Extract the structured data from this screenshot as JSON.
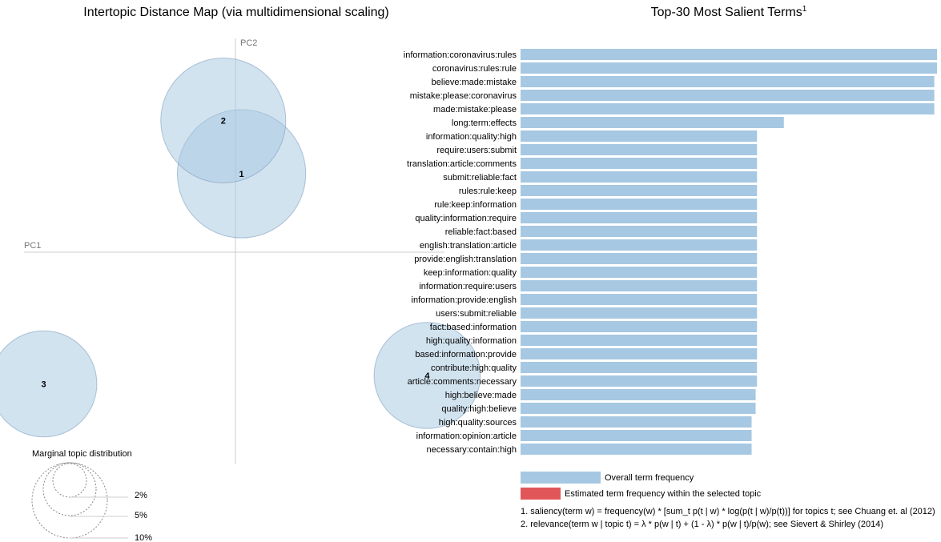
{
  "left_title": "Intertopic Distance Map (via multidimensional scaling)",
  "right_title": "Top-30 Most Salient Terms",
  "right_title_sup": "1",
  "pc1_label": "PC1",
  "pc2_label": "PC2",
  "marginal": {
    "label": "Marginal topic distribution",
    "levels": [
      "2%",
      "5%",
      "10%"
    ]
  },
  "legend": {
    "overall": "Overall term frequency",
    "overall_color": "#a6c8e2",
    "estimated": "Estimated term frequency within the selected topic",
    "estimated_color": "#e15759"
  },
  "notes": [
    "1. saliency(term w) = frequency(w) * [sum_t p(t | w) * log(p(t | w)/p(t))] for topics t; see Chuang et. al (2012)",
    "2. relevance(term w | topic t) = λ * p(w | t) + (1 - λ) * p(w | t)/p(w); see Sievert & Shirley (2014)"
  ],
  "colors": {
    "topic_fill": "#a6c8e2",
    "axis": "#cccccc"
  },
  "chart_data": [
    {
      "type": "scatter",
      "title": "Intertopic Distance Map (via multidimensional scaling)",
      "xlabel": "PC1",
      "ylabel": "PC2",
      "topics": [
        {
          "label": "1",
          "pc1": 0.02,
          "pc2": 0.28,
          "marginal_pct": 9.5
        },
        {
          "label": "2",
          "pc1": -0.04,
          "pc2": 0.47,
          "marginal_pct": 9.0
        },
        {
          "label": "3",
          "pc1": -0.63,
          "pc2": -0.47,
          "marginal_pct": 6.5
        },
        {
          "label": "4",
          "pc1": 0.63,
          "pc2": -0.44,
          "marginal_pct": 6.5
        }
      ]
    },
    {
      "type": "bar",
      "orientation": "horizontal",
      "title": "Top-30 Most Salient Terms",
      "series": [
        {
          "name": "Overall term frequency",
          "values": [
            31,
            31,
            30.8,
            30.8,
            30.8,
            19.6,
            17.6,
            17.6,
            17.6,
            17.6,
            17.6,
            17.6,
            17.6,
            17.6,
            17.6,
            17.6,
            17.6,
            17.6,
            17.6,
            17.6,
            17.6,
            17.6,
            17.6,
            17.6,
            17.6,
            17.5,
            17.5,
            17.2,
            17.2,
            17.2
          ]
        }
      ],
      "categories": [
        "information:coronavirus:rules",
        "coronavirus:rules:rule",
        "believe:made:mistake",
        "mistake:please:coronavirus",
        "made:mistake:please",
        "long:term:effects",
        "information:quality:high",
        "require:users:submit",
        "translation:article:comments",
        "submit:reliable:fact",
        "rules:rule:keep",
        "rule:keep:information",
        "quality:information:require",
        "reliable:fact:based",
        "english:translation:article",
        "provide:english:translation",
        "keep:information:quality",
        "information:require:users",
        "information:provide:english",
        "users:submit:reliable",
        "fact:based:information",
        "high:quality:information",
        "based:information:provide",
        "contribute:high:quality",
        "article:comments:necessary",
        "high:believe:made",
        "quality:high:believe",
        "high:quality:sources",
        "information:opinion:article",
        "necessary:contain:high"
      ],
      "xlim": [
        0,
        31
      ]
    }
  ]
}
